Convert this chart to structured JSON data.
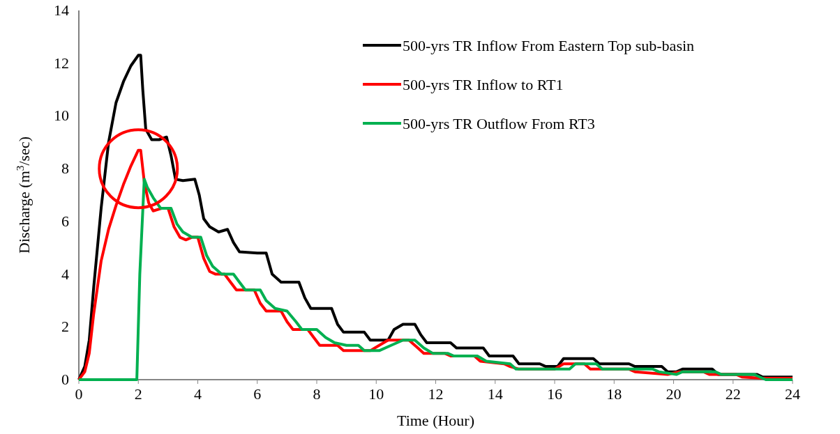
{
  "chart_data": {
    "type": "line",
    "xlabel": "Time (Hour)",
    "ylabel": "Discharge (m$^{3}$/sec)",
    "xlim": [
      0,
      24
    ],
    "xticks": [
      0,
      2,
      4,
      6,
      8,
      10,
      12,
      14,
      16,
      18,
      20,
      22,
      24
    ],
    "ylim": [
      0,
      14
    ],
    "yticks": [
      0,
      2,
      4,
      6,
      8,
      10,
      12,
      14
    ],
    "grid": false,
    "legend": "top right",
    "marker": "none",
    "line_style": "solid",
    "series": [
      {
        "name": "500-yrs TR Inflow From Eastern Top sub-basin",
        "color": "#000000",
        "x": [
          0,
          0.2,
          0.35,
          0.5,
          0.75,
          1,
          1.25,
          1.5,
          1.75,
          2,
          2.08,
          2.15,
          2.25,
          2.45,
          2.7,
          2.95,
          3.1,
          3.25,
          3.5,
          3.9,
          4.05,
          4.2,
          4.4,
          4.7,
          5,
          5.2,
          5.4,
          6,
          6.3,
          6.5,
          6.8,
          7.4,
          7.6,
          7.8,
          8.5,
          8.7,
          8.9,
          9.6,
          9.8,
          10.4,
          10.6,
          10.9,
          11.3,
          11.5,
          11.7,
          12.5,
          12.7,
          13.6,
          13.8,
          14.6,
          14.8,
          15.5,
          15.7,
          16.1,
          16.3,
          17.3,
          17.5,
          18.5,
          18.7,
          19.6,
          19.8,
          20.1,
          20.3,
          21.3,
          21.5,
          22.8,
          23,
          24
        ],
        "values": [
          0,
          0.5,
          1.5,
          3.5,
          6.5,
          9,
          10.5,
          11.3,
          11.9,
          12.3,
          12.3,
          11,
          9.5,
          9.1,
          9.1,
          9.2,
          8.5,
          7.6,
          7.55,
          7.6,
          7,
          6.1,
          5.8,
          5.6,
          5.7,
          5.2,
          4.85,
          4.8,
          4.8,
          4,
          3.7,
          3.7,
          3.1,
          2.7,
          2.7,
          2.1,
          1.8,
          1.8,
          1.5,
          1.5,
          1.9,
          2.1,
          2.1,
          1.7,
          1.4,
          1.4,
          1.2,
          1.2,
          0.9,
          0.9,
          0.6,
          0.6,
          0.5,
          0.5,
          0.8,
          0.8,
          0.6,
          0.6,
          0.5,
          0.5,
          0.3,
          0.3,
          0.4,
          0.4,
          0.2,
          0.2,
          0.1,
          0.1
        ]
      },
      {
        "name": "500-yrs TR Inflow to RT1",
        "color": "#ff0000",
        "x": [
          0,
          0.2,
          0.35,
          0.5,
          0.75,
          1,
          1.25,
          1.5,
          1.75,
          2,
          2.08,
          2.2,
          2.35,
          2.5,
          2.8,
          3,
          3.2,
          3.4,
          3.6,
          3.8,
          4,
          4.2,
          4.4,
          4.6,
          4.9,
          5.1,
          5.3,
          5.9,
          6.1,
          6.3,
          6.8,
          7,
          7.2,
          7.7,
          7.9,
          8.1,
          8.7,
          8.9,
          9.8,
          10.1,
          10.4,
          11.1,
          11.4,
          11.6,
          12.3,
          12.5,
          13.3,
          13.5,
          14.3,
          14.5,
          14.8,
          16,
          16.3,
          17,
          17.2,
          18.5,
          18.7,
          19.8,
          20.2,
          21,
          21.2,
          22.1,
          22.3,
          23,
          24
        ],
        "values": [
          0,
          0.3,
          1,
          2.5,
          4.5,
          5.7,
          6.6,
          7.4,
          8.1,
          8.7,
          8.7,
          7.5,
          6.7,
          6.4,
          6.5,
          6.5,
          5.8,
          5.4,
          5.3,
          5.4,
          5.4,
          4.6,
          4.1,
          4,
          4,
          3.7,
          3.4,
          3.4,
          2.9,
          2.6,
          2.6,
          2.2,
          1.9,
          1.9,
          1.6,
          1.3,
          1.3,
          1.1,
          1.1,
          1.3,
          1.5,
          1.5,
          1.2,
          1,
          1,
          0.9,
          0.9,
          0.7,
          0.6,
          0.5,
          0.4,
          0.4,
          0.6,
          0.6,
          0.4,
          0.4,
          0.3,
          0.2,
          0.3,
          0.3,
          0.2,
          0.2,
          0.1,
          0.05,
          0.05
        ]
      },
      {
        "name": "500-yrs TR Outflow From RT3",
        "color": "#00b050",
        "x": [
          0,
          1.95,
          2.05,
          2.2,
          2.3,
          2.5,
          2.75,
          3.1,
          3.3,
          3.5,
          3.8,
          4.1,
          4.3,
          4.5,
          4.8,
          5.2,
          5.4,
          5.6,
          6.1,
          6.3,
          6.6,
          7,
          7.3,
          7.5,
          8,
          8.3,
          8.6,
          9,
          9.4,
          9.6,
          10.1,
          10.5,
          10.9,
          11.3,
          11.6,
          11.9,
          12.4,
          12.6,
          13.4,
          13.7,
          14.5,
          14.7,
          16.5,
          16.7,
          17.4,
          17.6,
          19.3,
          19.5,
          20.1,
          20.3,
          21.4,
          21.6,
          22.7,
          22.9,
          23.1,
          24
        ],
        "values": [
          0,
          0,
          4,
          7.6,
          7.3,
          6.9,
          6.5,
          6.5,
          5.9,
          5.6,
          5.4,
          5.4,
          4.7,
          4.3,
          4,
          4,
          3.7,
          3.4,
          3.4,
          3,
          2.7,
          2.6,
          2.2,
          1.9,
          1.9,
          1.6,
          1.4,
          1.3,
          1.3,
          1.1,
          1.1,
          1.3,
          1.5,
          1.5,
          1.2,
          1,
          1,
          0.9,
          0.9,
          0.7,
          0.6,
          0.4,
          0.4,
          0.6,
          0.6,
          0.4,
          0.4,
          0.3,
          0.2,
          0.3,
          0.3,
          0.2,
          0.2,
          0.1,
          0,
          0
        ]
      }
    ]
  }
}
